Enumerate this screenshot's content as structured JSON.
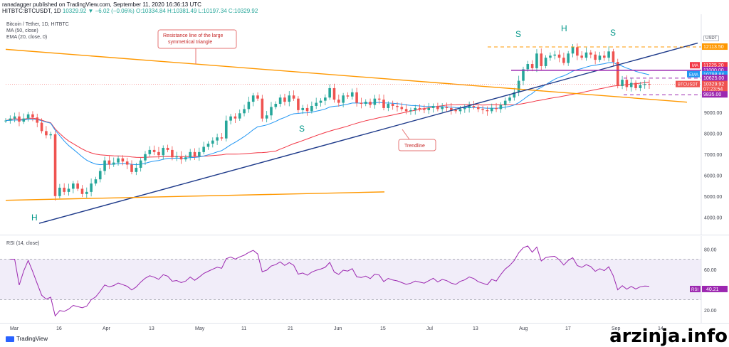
{
  "header": {
    "line1": "ranadagger published on TradingView.com, September 11, 2020 16:36:13 UTC",
    "line2_symbol": "HITBTC:BTCUSDT, 1D",
    "line2_values": "10329.92 ▼ −6.02 (−0.06%) O:10334.84 H:10381.49 L:10197.34 C:10329.92"
  },
  "legend": {
    "pair": "Bitcoin / Tether, 1D, HITBTC",
    "ma": "MA (50, close)",
    "ema": "EMA (20, close, 0)",
    "rsi": "RSI (14, close)"
  },
  "currency": "USDT",
  "annotations": {
    "resistance_note": "Resistance line of the large symmetrical triangle",
    "trendline_note": "Trendline",
    "h_left": "H",
    "s_left": "S",
    "s_top_left": "S",
    "h_top": "H",
    "s_top_right": "S"
  },
  "price_labels": [
    {
      "text": "12113.50",
      "value": 12113.5,
      "color": "#ff9800",
      "text_color": "#ffffff"
    },
    {
      "text": "11225.20",
      "value": 11225.2,
      "color": "#f23645",
      "text_color": "#ffffff",
      "tag": "MA"
    },
    {
      "text": "11000.00",
      "value": 11000,
      "color": "#9c27b0",
      "text_color": "#ffffff"
    },
    {
      "text": "10798.84",
      "value": 10798.84,
      "color": "#2196f3",
      "text_color": "#ffffff",
      "tag": "EMA"
    },
    {
      "text": "10625.00",
      "value": 10625,
      "color": "#9c27b0",
      "text_color": "#ffffff"
    },
    {
      "text": "10329.92",
      "value": 10329.92,
      "color": "#ef5350",
      "text_color": "#ffffff",
      "tag": "BTCUSDT"
    },
    {
      "text": "07:23:54",
      "value": 10100,
      "color": "#ef5350",
      "text_color": "#ffffff"
    },
    {
      "text": "9835.00",
      "value": 9835,
      "color": "#9c27b0",
      "text_color": "#ffffff"
    }
  ],
  "rsi_label": {
    "tag": "RSI",
    "text": "40.21",
    "color": "#9c27b0"
  },
  "chart_data": [
    {
      "type": "candlestick",
      "title": "Bitcoin / Tether, 1D, HITBTC",
      "ylim": [
        3500,
        13200
      ],
      "yticks": [
        4000,
        5000,
        6000,
        7000,
        8000,
        9000
      ],
      "x_ticks": [
        "Mar",
        "16",
        "Apr",
        "13",
        "May",
        "11",
        "21",
        "Jun",
        "15",
        "Jul",
        "13",
        "Aug",
        "17",
        "Sep",
        "14"
      ],
      "closes": [
        8600,
        8700,
        8800,
        8550,
        8700,
        8900,
        8750,
        8500,
        8100,
        7900,
        7950,
        5000,
        5400,
        5200,
        5350,
        5600,
        5350,
        5100,
        5200,
        5600,
        5800,
        6200,
        6700,
        6500,
        6600,
        6800,
        6650,
        6500,
        6150,
        6350,
        6700,
        7000,
        7200,
        7100,
        6950,
        7300,
        7200,
        6850,
        6900,
        6750,
        6850,
        7100,
        6900,
        7100,
        7350,
        7500,
        7650,
        7800,
        7750,
        8600,
        8800,
        8700,
        8950,
        9150,
        9500,
        9800,
        9650,
        8700,
        8850,
        9250,
        9400,
        9700,
        9500,
        9800,
        9650,
        9100,
        9200,
        9050,
        9300,
        9450,
        9550,
        9700,
        10150,
        9600,
        9450,
        9800,
        9750,
        9950,
        9450,
        9400,
        9500,
        9350,
        9650,
        9600,
        9200,
        9400,
        9300,
        9250,
        9150,
        9050,
        9100,
        9200,
        9150,
        9100,
        9200,
        9300,
        9150,
        9250,
        9200,
        9100,
        9050,
        9150,
        9200,
        9300,
        9250,
        9150,
        9100,
        9050,
        9200,
        9150,
        9350,
        9550,
        9700,
        9950,
        10500,
        11050,
        11300,
        11100,
        11800,
        11200,
        11600,
        11700,
        11750,
        11600,
        11350,
        11800,
        12100,
        11700,
        11600,
        11850,
        11750,
        11500,
        11700,
        11600,
        11900,
        11400,
        10250,
        10550,
        10200,
        10400,
        10150,
        10300,
        10350,
        10330
      ],
      "ma50_last": 11225.2,
      "ema20_last": 10798.84,
      "levels": [
        12113.5,
        11000,
        10625,
        9835
      ]
    },
    {
      "type": "line",
      "title": "RSI (14, close)",
      "ylim": [
        10,
        90
      ],
      "yticks": [
        20,
        40,
        60,
        80
      ],
      "band": [
        30,
        70
      ],
      "last": 40.21
    }
  ]
}
